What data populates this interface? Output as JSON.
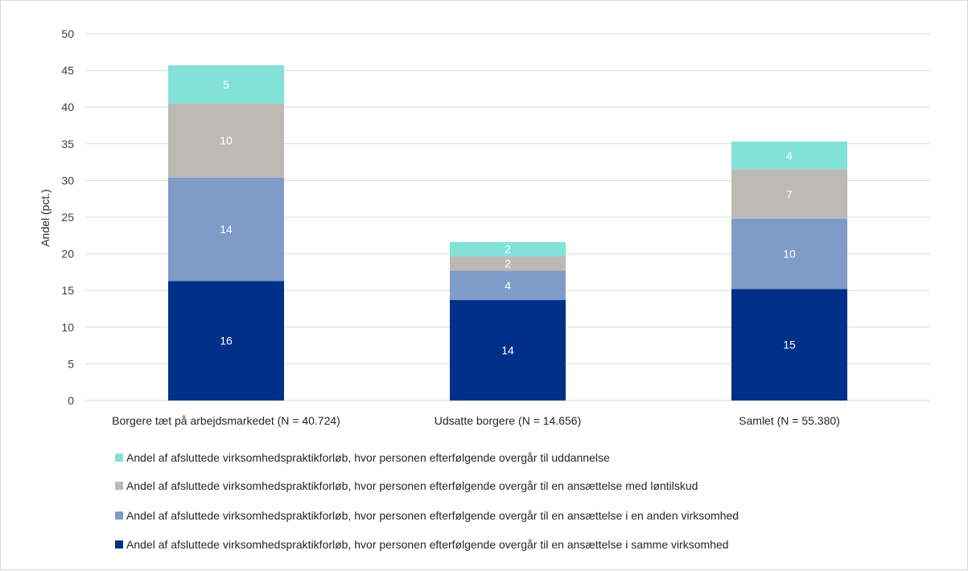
{
  "chart_data": {
    "type": "bar",
    "stacked": true,
    "title": "",
    "xlabel": "",
    "ylabel": "Andel (pct.)",
    "ylim": [
      0,
      50
    ],
    "yticks": [
      0,
      5,
      10,
      15,
      20,
      25,
      30,
      35,
      40,
      45,
      50
    ],
    "grid": true,
    "legend_position": "bottom",
    "categories": [
      "Borgere tæt på arbejdsmarkedet (N = 40.724)",
      "Udsatte borgere (N = 14.656)",
      "Samlet (N = 55.380)"
    ],
    "series": [
      {
        "name": "Andel af afsluttede virksomhedspraktikforløb, hvor personen efterfølgende overgår til en ansættelse i samme virksomhed",
        "color": "#003087",
        "values": [
          16.3,
          13.7,
          15.2
        ],
        "labels": [
          "16",
          "14",
          "15"
        ]
      },
      {
        "name": "Andel af afsluttede virksomhedspraktikforløb, hvor personen efterfølgende overgår til en ansættelse i en anden virksomhed",
        "color": "#7f9bc8",
        "values": [
          14.1,
          4.0,
          9.6
        ],
        "labels": [
          "14",
          "4",
          "10"
        ]
      },
      {
        "name": "Andel af afsluttede virksomhedspraktikforløb, hvor personen efterfølgende overgår til en ansættelse med løntilskud",
        "color": "#bcbab5",
        "values": [
          10.1,
          2.0,
          6.7
        ],
        "labels": [
          "10",
          "2",
          "7"
        ]
      },
      {
        "name": "Andel af afsluttede virksomhedspraktikforløb, hvor personen efterfølgende overgår til uddannelse",
        "color": "#82e2d8",
        "values": [
          5.2,
          1.9,
          3.8
        ],
        "labels": [
          "5",
          "2",
          "4"
        ]
      }
    ]
  }
}
